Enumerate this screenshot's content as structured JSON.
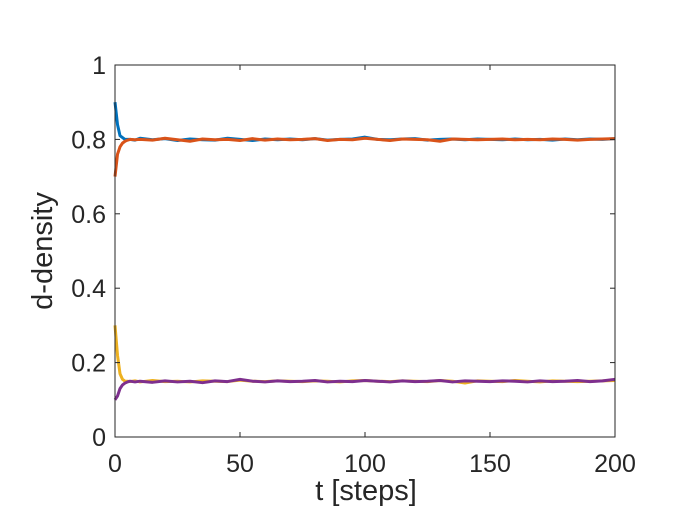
{
  "chart_data": {
    "type": "line",
    "title": "",
    "xlabel": "t [steps]",
    "ylabel": "d-density",
    "xlim": [
      0,
      200
    ],
    "ylim": [
      0,
      1
    ],
    "xticks": [
      0,
      50,
      100,
      150,
      200
    ],
    "yticks": [
      0,
      0.2,
      0.4,
      0.6,
      0.8,
      1
    ],
    "xtick_labels": [
      "0",
      "50",
      "100",
      "150",
      "200"
    ],
    "ytick_labels": [
      "0",
      "0.2",
      "0.4",
      "0.6",
      "0.8",
      "1"
    ],
    "grid": false,
    "legend": "none",
    "series": [
      {
        "color": "#0072BD",
        "x": [
          0,
          1,
          2,
          3,
          4,
          5,
          6,
          8,
          10,
          15,
          20,
          25,
          30,
          35,
          40,
          45,
          50,
          55,
          60,
          65,
          70,
          75,
          80,
          85,
          90,
          95,
          100,
          105,
          110,
          115,
          120,
          125,
          130,
          135,
          140,
          145,
          150,
          155,
          160,
          165,
          170,
          175,
          180,
          185,
          190,
          195,
          200
        ],
        "values": [
          0.9,
          0.84,
          0.81,
          0.805,
          0.8,
          0.8,
          0.8,
          0.798,
          0.803,
          0.799,
          0.802,
          0.797,
          0.801,
          0.799,
          0.798,
          0.803,
          0.8,
          0.797,
          0.801,
          0.799,
          0.801,
          0.799,
          0.802,
          0.798,
          0.8,
          0.801,
          0.806,
          0.8,
          0.799,
          0.801,
          0.802,
          0.798,
          0.8,
          0.801,
          0.799,
          0.801,
          0.8,
          0.799,
          0.801,
          0.799,
          0.8,
          0.798,
          0.801,
          0.799,
          0.801,
          0.8,
          0.802
        ]
      },
      {
        "color": "#D95319",
        "x": [
          0,
          1,
          2,
          3,
          4,
          5,
          6,
          8,
          10,
          15,
          20,
          25,
          30,
          35,
          40,
          45,
          50,
          55,
          60,
          65,
          70,
          75,
          80,
          85,
          90,
          95,
          100,
          105,
          110,
          115,
          120,
          125,
          130,
          135,
          140,
          145,
          150,
          155,
          160,
          165,
          170,
          175,
          180,
          185,
          190,
          195,
          200
        ],
        "values": [
          0.7,
          0.76,
          0.78,
          0.79,
          0.795,
          0.798,
          0.8,
          0.799,
          0.8,
          0.798,
          0.803,
          0.799,
          0.795,
          0.801,
          0.799,
          0.8,
          0.797,
          0.802,
          0.798,
          0.801,
          0.799,
          0.8,
          0.802,
          0.797,
          0.8,
          0.799,
          0.803,
          0.8,
          0.797,
          0.801,
          0.8,
          0.799,
          0.795,
          0.801,
          0.8,
          0.799,
          0.8,
          0.801,
          0.799,
          0.8,
          0.799,
          0.801,
          0.8,
          0.798,
          0.8,
          0.801,
          0.802
        ]
      },
      {
        "color": "#EDB120",
        "x": [
          0,
          1,
          2,
          3,
          4,
          5,
          6,
          8,
          10,
          15,
          20,
          25,
          30,
          35,
          40,
          45,
          50,
          55,
          60,
          65,
          70,
          75,
          80,
          85,
          90,
          95,
          100,
          105,
          110,
          115,
          120,
          125,
          130,
          135,
          140,
          145,
          150,
          155,
          160,
          165,
          170,
          175,
          180,
          185,
          190,
          195,
          200
        ],
        "values": [
          0.3,
          0.22,
          0.17,
          0.155,
          0.15,
          0.15,
          0.149,
          0.151,
          0.148,
          0.152,
          0.149,
          0.15,
          0.148,
          0.151,
          0.15,
          0.149,
          0.153,
          0.15,
          0.149,
          0.151,
          0.15,
          0.149,
          0.151,
          0.15,
          0.148,
          0.151,
          0.152,
          0.15,
          0.149,
          0.151,
          0.15,
          0.149,
          0.152,
          0.15,
          0.145,
          0.151,
          0.15,
          0.149,
          0.152,
          0.15,
          0.148,
          0.151,
          0.15,
          0.149,
          0.15,
          0.151,
          0.152
        ]
      },
      {
        "color": "#7E2F8E",
        "x": [
          0,
          1,
          2,
          3,
          4,
          5,
          6,
          8,
          10,
          15,
          20,
          25,
          30,
          35,
          40,
          45,
          50,
          55,
          60,
          65,
          70,
          75,
          80,
          85,
          90,
          95,
          100,
          105,
          110,
          115,
          120,
          125,
          130,
          135,
          140,
          145,
          150,
          155,
          160,
          165,
          170,
          175,
          180,
          185,
          190,
          195,
          200
        ],
        "values": [
          0.1,
          0.11,
          0.13,
          0.14,
          0.145,
          0.148,
          0.15,
          0.148,
          0.15,
          0.147,
          0.151,
          0.148,
          0.15,
          0.146,
          0.151,
          0.149,
          0.155,
          0.15,
          0.148,
          0.151,
          0.149,
          0.15,
          0.152,
          0.148,
          0.15,
          0.149,
          0.152,
          0.15,
          0.148,
          0.151,
          0.149,
          0.15,
          0.152,
          0.148,
          0.151,
          0.15,
          0.149,
          0.151,
          0.15,
          0.148,
          0.151,
          0.149,
          0.15,
          0.152,
          0.149,
          0.151,
          0.155
        ]
      }
    ]
  }
}
